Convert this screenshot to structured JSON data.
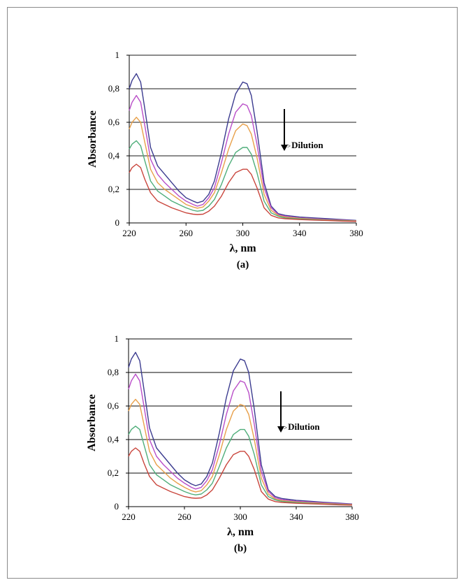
{
  "chart_data": [
    {
      "type": "line",
      "panel_label": "(a)",
      "xlabel": "λ, nm",
      "ylabel": "Absorbance",
      "xlim": [
        220,
        380
      ],
      "ylim": [
        0,
        1
      ],
      "xticks": [
        "220",
        "260",
        "300",
        "340",
        "380"
      ],
      "yticks": [
        "0",
        "0,2",
        "0,4",
        "0,6",
        "0,8",
        "1"
      ],
      "grid": "horizontal",
      "annotation": "Dilution",
      "x": [
        220,
        222,
        225,
        228,
        231,
        235,
        240,
        245,
        250,
        255,
        260,
        265,
        268,
        272,
        276,
        280,
        285,
        290,
        295,
        300,
        303,
        306,
        310,
        315,
        320,
        325,
        330,
        340,
        350,
        360,
        370,
        380
      ],
      "series": [
        {
          "color": "#3b3b8f",
          "values": [
            0.8,
            0.85,
            0.89,
            0.84,
            0.68,
            0.45,
            0.34,
            0.29,
            0.24,
            0.19,
            0.15,
            0.13,
            0.12,
            0.13,
            0.17,
            0.25,
            0.42,
            0.62,
            0.77,
            0.84,
            0.83,
            0.76,
            0.55,
            0.24,
            0.1,
            0.055,
            0.045,
            0.035,
            0.03,
            0.025,
            0.02,
            0.015
          ]
        },
        {
          "color": "#b94ec8",
          "values": [
            0.67,
            0.72,
            0.76,
            0.72,
            0.58,
            0.38,
            0.29,
            0.24,
            0.2,
            0.16,
            0.13,
            0.11,
            0.1,
            0.11,
            0.15,
            0.21,
            0.36,
            0.53,
            0.66,
            0.71,
            0.7,
            0.64,
            0.47,
            0.21,
            0.09,
            0.05,
            0.04,
            0.03,
            0.025,
            0.02,
            0.017,
            0.013
          ]
        },
        {
          "color": "#e8a04a",
          "values": [
            0.56,
            0.6,
            0.63,
            0.6,
            0.48,
            0.32,
            0.24,
            0.2,
            0.17,
            0.14,
            0.11,
            0.095,
            0.088,
            0.095,
            0.13,
            0.18,
            0.3,
            0.44,
            0.55,
            0.59,
            0.58,
            0.53,
            0.39,
            0.17,
            0.075,
            0.045,
            0.035,
            0.027,
            0.022,
            0.018,
            0.015,
            0.012
          ]
        },
        {
          "color": "#4fae7a",
          "values": [
            0.44,
            0.47,
            0.49,
            0.46,
            0.37,
            0.25,
            0.19,
            0.16,
            0.13,
            0.11,
            0.09,
            0.075,
            0.07,
            0.075,
            0.1,
            0.14,
            0.23,
            0.34,
            0.42,
            0.45,
            0.45,
            0.41,
            0.3,
            0.13,
            0.06,
            0.04,
            0.03,
            0.024,
            0.02,
            0.016,
            0.013,
            0.01
          ]
        },
        {
          "color": "#c9453c",
          "values": [
            0.3,
            0.33,
            0.35,
            0.33,
            0.26,
            0.18,
            0.13,
            0.11,
            0.09,
            0.075,
            0.06,
            0.052,
            0.05,
            0.052,
            0.07,
            0.1,
            0.16,
            0.24,
            0.3,
            0.32,
            0.32,
            0.29,
            0.21,
            0.09,
            0.045,
            0.03,
            0.025,
            0.02,
            0.017,
            0.014,
            0.011,
            0.009
          ]
        }
      ]
    },
    {
      "type": "line",
      "panel_label": "(b)",
      "xlabel": "λ, nm",
      "ylabel": "Absorbance",
      "xlim": [
        220,
        380
      ],
      "ylim": [
        0,
        1
      ],
      "xticks": [
        "220",
        "260",
        "300",
        "340",
        "380"
      ],
      "yticks": [
        "0",
        "0,2",
        "0,4",
        "0,6",
        "0,8",
        "1"
      ],
      "grid": "horizontal",
      "annotation": "Dilution",
      "x": [
        220,
        222,
        225,
        228,
        231,
        235,
        240,
        245,
        250,
        255,
        260,
        265,
        268,
        272,
        276,
        280,
        285,
        290,
        295,
        300,
        303,
        306,
        310,
        315,
        320,
        325,
        330,
        340,
        350,
        360,
        370,
        380
      ],
      "series": [
        {
          "color": "#3b3b8f",
          "values": [
            0.83,
            0.88,
            0.92,
            0.87,
            0.7,
            0.47,
            0.35,
            0.3,
            0.25,
            0.2,
            0.16,
            0.135,
            0.125,
            0.135,
            0.18,
            0.26,
            0.44,
            0.65,
            0.81,
            0.88,
            0.87,
            0.8,
            0.58,
            0.25,
            0.1,
            0.06,
            0.048,
            0.038,
            0.032,
            0.026,
            0.021,
            0.016
          ]
        },
        {
          "color": "#b94ec8",
          "values": [
            0.7,
            0.75,
            0.79,
            0.75,
            0.6,
            0.4,
            0.3,
            0.25,
            0.21,
            0.17,
            0.14,
            0.115,
            0.105,
            0.115,
            0.155,
            0.22,
            0.37,
            0.55,
            0.69,
            0.75,
            0.74,
            0.68,
            0.49,
            0.21,
            0.09,
            0.052,
            0.042,
            0.032,
            0.027,
            0.022,
            0.018,
            0.014
          ]
        },
        {
          "color": "#e8a04a",
          "values": [
            0.57,
            0.61,
            0.64,
            0.61,
            0.49,
            0.33,
            0.25,
            0.21,
            0.17,
            0.14,
            0.115,
            0.095,
            0.088,
            0.095,
            0.13,
            0.18,
            0.31,
            0.46,
            0.57,
            0.61,
            0.6,
            0.55,
            0.4,
            0.17,
            0.075,
            0.045,
            0.036,
            0.028,
            0.023,
            0.019,
            0.015,
            0.012
          ]
        },
        {
          "color": "#4fae7a",
          "values": [
            0.43,
            0.46,
            0.48,
            0.46,
            0.37,
            0.25,
            0.19,
            0.16,
            0.13,
            0.11,
            0.09,
            0.075,
            0.07,
            0.075,
            0.1,
            0.14,
            0.24,
            0.35,
            0.43,
            0.46,
            0.46,
            0.42,
            0.31,
            0.13,
            0.06,
            0.04,
            0.031,
            0.024,
            0.02,
            0.016,
            0.013,
            0.01
          ]
        },
        {
          "color": "#c9453c",
          "values": [
            0.3,
            0.33,
            0.35,
            0.33,
            0.26,
            0.18,
            0.13,
            0.11,
            0.09,
            0.075,
            0.06,
            0.052,
            0.05,
            0.052,
            0.07,
            0.1,
            0.17,
            0.25,
            0.31,
            0.33,
            0.33,
            0.3,
            0.22,
            0.09,
            0.045,
            0.03,
            0.025,
            0.02,
            0.017,
            0.014,
            0.011,
            0.009
          ]
        }
      ]
    }
  ]
}
